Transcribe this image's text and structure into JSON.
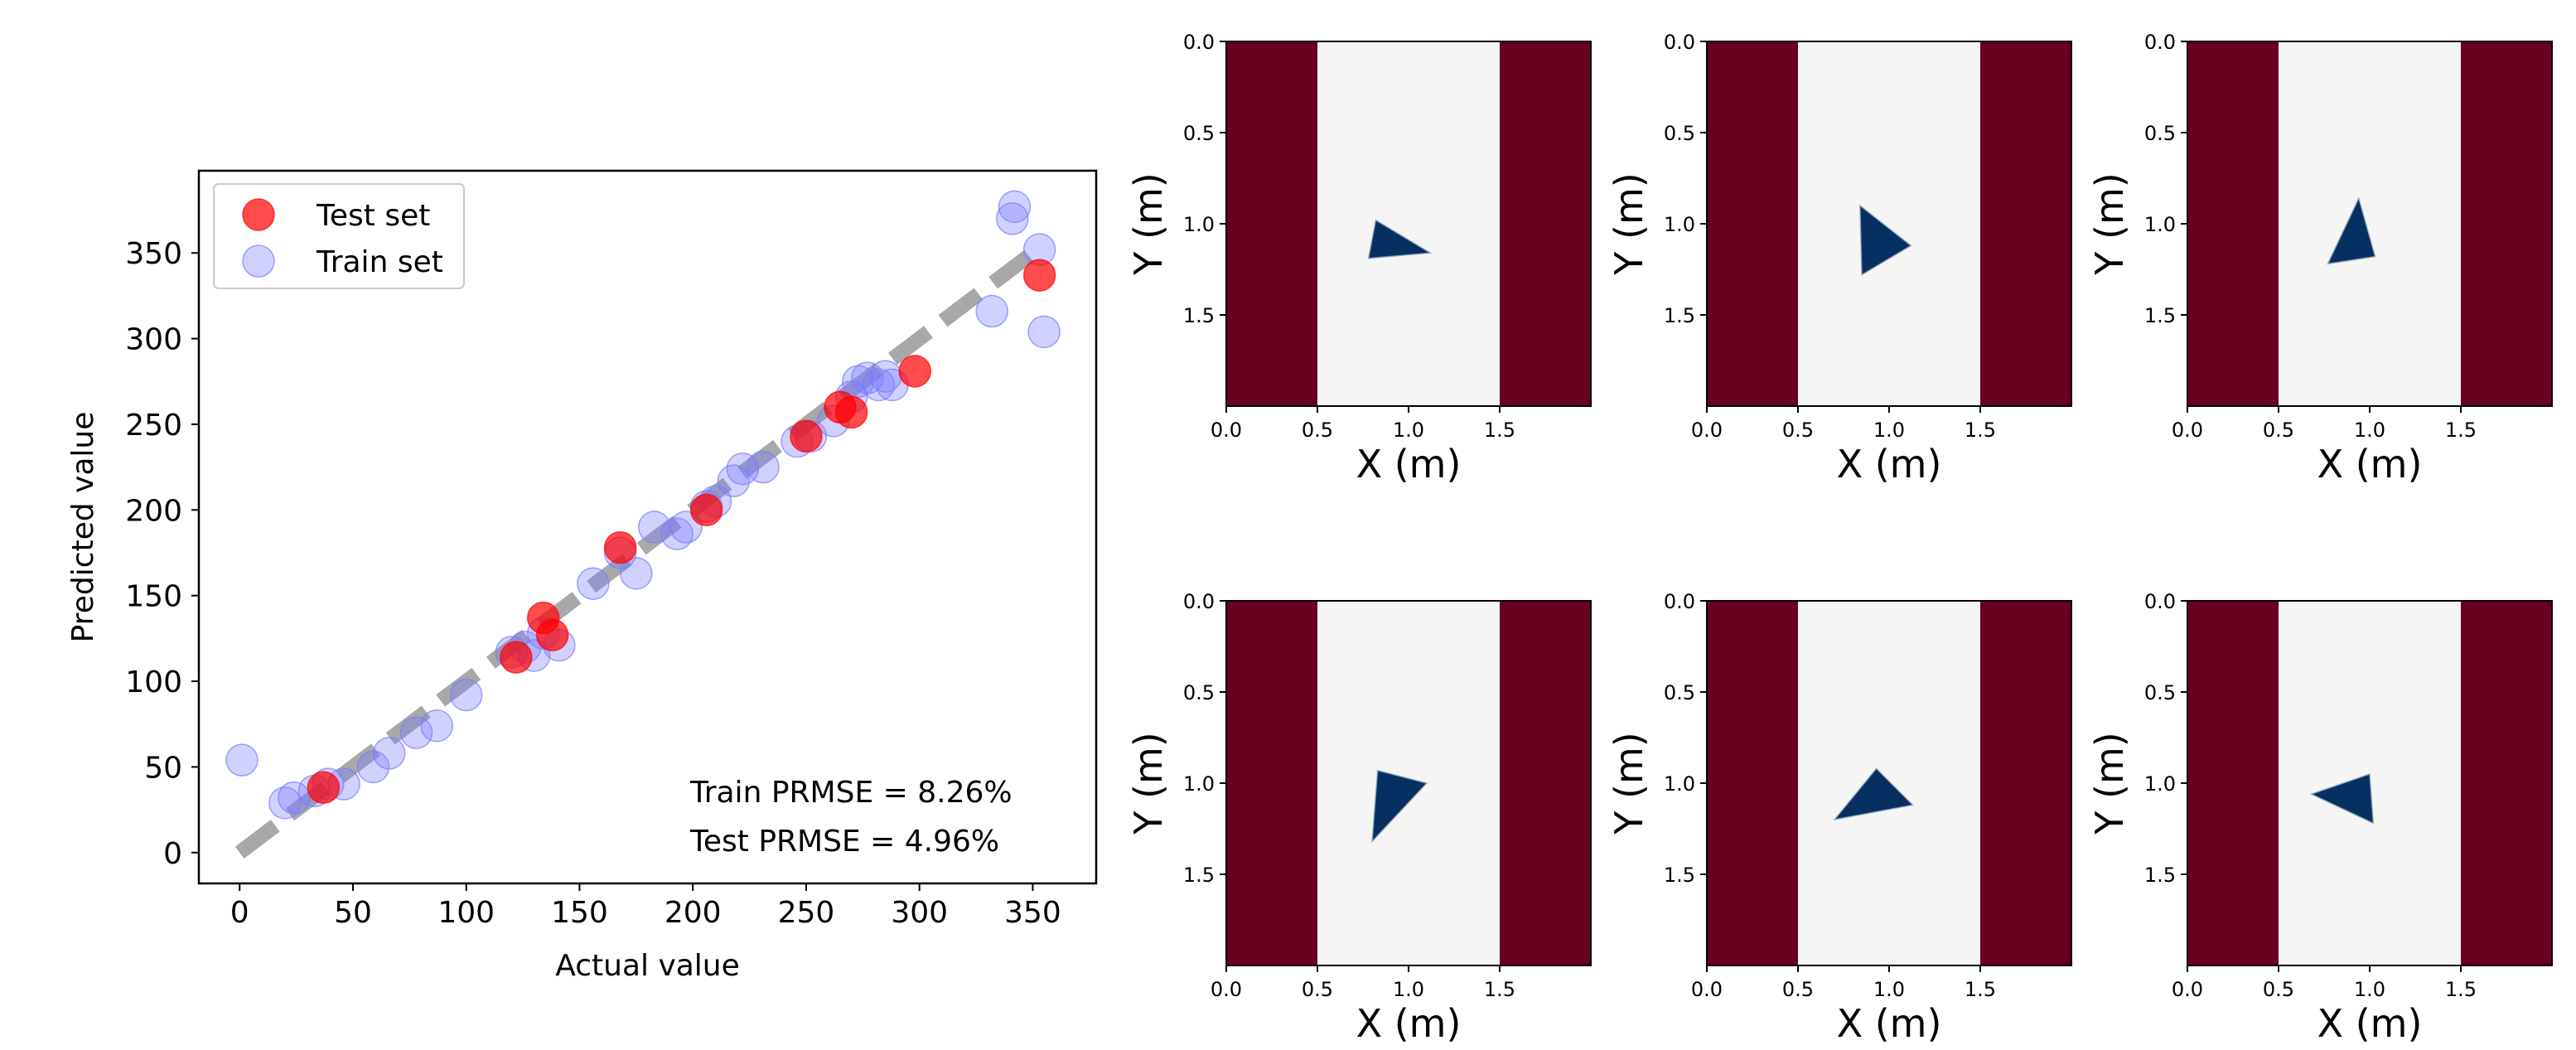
{
  "colors": {
    "test": "#ff0000",
    "train": "#7b7bff",
    "diagonal": "#a8a8a8",
    "wall": "#67001f",
    "floor": "#f5f5f5",
    "shape": "#053061"
  },
  "chart_data": [
    {
      "type": "scatter",
      "xlabel": "Actual value",
      "ylabel": "Predicted value",
      "xlim": [
        -18,
        378
      ],
      "ylim": [
        -18,
        398
      ],
      "xticks": [
        0,
        50,
        100,
        150,
        200,
        250,
        300,
        350
      ],
      "yticks": [
        0,
        50,
        100,
        150,
        200,
        250,
        300,
        350
      ],
      "legend_position": "upper-left",
      "diagonal": [
        [
          0,
          0
        ],
        [
          350,
          350
        ]
      ],
      "series": [
        {
          "name": "Test set",
          "color": "#ff0000",
          "points": [
            [
              37,
              38
            ],
            [
              122,
              114
            ],
            [
              134,
              137
            ],
            [
              138,
              127
            ],
            [
              168,
              178
            ],
            [
              206,
              200
            ],
            [
              250,
              243
            ],
            [
              265,
              260
            ],
            [
              270,
              257
            ],
            [
              298,
              281
            ],
            [
              353,
              337
            ]
          ]
        },
        {
          "name": "Train set",
          "color": "#7b7bff",
          "points": [
            [
              1,
              54
            ],
            [
              20,
              29
            ],
            [
              24,
              32
            ],
            [
              33,
              36
            ],
            [
              39,
              40
            ],
            [
              46,
              40
            ],
            [
              59,
              50
            ],
            [
              66,
              58
            ],
            [
              78,
              70
            ],
            [
              87,
              74
            ],
            [
              100,
              92
            ],
            [
              120,
              117
            ],
            [
              126,
              120
            ],
            [
              130,
              115
            ],
            [
              134,
              128
            ],
            [
              141,
              121
            ],
            [
              156,
              157
            ],
            [
              168,
              175
            ],
            [
              175,
              163
            ],
            [
              183,
              190
            ],
            [
              193,
              186
            ],
            [
              197,
              190
            ],
            [
              206,
              202
            ],
            [
              210,
              205
            ],
            [
              218,
              217
            ],
            [
              222,
              224
            ],
            [
              231,
              225
            ],
            [
              246,
              240
            ],
            [
              252,
              243
            ],
            [
              262,
              252
            ],
            [
              270,
              266
            ],
            [
              273,
              275
            ],
            [
              277,
              277
            ],
            [
              282,
              273
            ],
            [
              285,
              278
            ],
            [
              288,
              273
            ],
            [
              332,
              316
            ],
            [
              341,
              370
            ],
            [
              342,
              377
            ],
            [
              353,
              352
            ],
            [
              355,
              304
            ]
          ]
        }
      ],
      "annotations": [
        "Train PRMSE = 8.26%",
        "Test PRMSE = 4.96%"
      ]
    },
    {
      "type": "heatmap",
      "xlabel": "X (m)",
      "ylabel": "Y (m)",
      "xticks": [
        "0.0",
        "0.5",
        "1.0",
        "1.5"
      ],
      "yticks": [
        "0.0",
        "0.5",
        "1.0",
        "1.5"
      ],
      "walls_x": [
        0.5,
        1.5
      ],
      "extent": [
        0,
        2
      ],
      "triangle": [
        [
          0.78,
          1.19
        ],
        [
          0.82,
          0.98
        ],
        [
          1.12,
          1.16
        ]
      ]
    },
    {
      "type": "heatmap",
      "xlabel": "X (m)",
      "ylabel": "Y (m)",
      "xticks": [
        "0.0",
        "0.5",
        "1.0",
        "1.5"
      ],
      "yticks": [
        "0.0",
        "0.5",
        "1.0",
        "1.5"
      ],
      "walls_x": [
        0.5,
        1.5
      ],
      "extent": [
        0,
        2
      ],
      "triangle": [
        [
          0.84,
          0.9
        ],
        [
          1.12,
          1.12
        ],
        [
          0.85,
          1.28
        ]
      ]
    },
    {
      "type": "heatmap",
      "xlabel": "X (m)",
      "ylabel": "Y (m)",
      "xticks": [
        "0.0",
        "0.5",
        "1.0",
        "1.5"
      ],
      "yticks": [
        "0.0",
        "0.5",
        "1.0",
        "1.5"
      ],
      "walls_x": [
        0.5,
        1.5
      ],
      "extent": [
        0,
        2
      ],
      "triangle": [
        [
          0.94,
          0.86
        ],
        [
          1.03,
          1.18
        ],
        [
          0.77,
          1.22
        ]
      ]
    },
    {
      "type": "heatmap",
      "xlabel": "X (m)",
      "ylabel": "Y (m)",
      "xticks": [
        "0.0",
        "0.5",
        "1.0",
        "1.5"
      ],
      "yticks": [
        "0.0",
        "0.5",
        "1.0",
        "1.5"
      ],
      "walls_x": [
        0.5,
        1.5
      ],
      "extent": [
        0,
        2
      ],
      "triangle": [
        [
          0.83,
          0.93
        ],
        [
          1.1,
          1.0
        ],
        [
          0.8,
          1.32
        ]
      ]
    },
    {
      "type": "heatmap",
      "xlabel": "X (m)",
      "ylabel": "Y (m)",
      "xticks": [
        "0.0",
        "0.5",
        "1.0",
        "1.5"
      ],
      "yticks": [
        "0.0",
        "0.5",
        "1.0",
        "1.5"
      ],
      "walls_x": [
        0.5,
        1.5
      ],
      "extent": [
        0,
        2
      ],
      "triangle": [
        [
          0.93,
          0.92
        ],
        [
          1.13,
          1.12
        ],
        [
          0.7,
          1.2
        ]
      ]
    },
    {
      "type": "heatmap",
      "xlabel": "X (m)",
      "ylabel": "Y (m)",
      "xticks": [
        "0.0",
        "0.5",
        "1.0",
        "1.5"
      ],
      "yticks": [
        "0.0",
        "0.5",
        "1.0",
        "1.5"
      ],
      "walls_x": [
        0.5,
        1.5
      ],
      "extent": [
        0,
        2
      ],
      "triangle": [
        [
          1.0,
          0.95
        ],
        [
          1.02,
          1.22
        ],
        [
          0.68,
          1.06
        ]
      ]
    }
  ]
}
